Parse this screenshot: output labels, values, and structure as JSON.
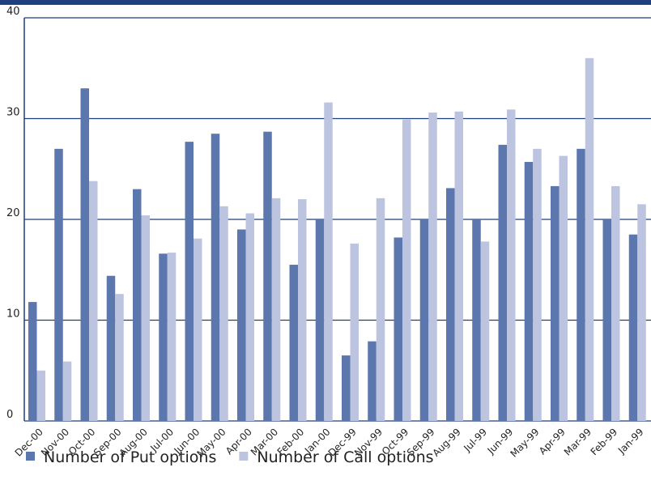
{
  "chart_data": {
    "type": "bar",
    "categories": [
      "Dec-00",
      "Nov-00",
      "Oct-00",
      "Sep-00",
      "Aug-00",
      "Jul-00",
      "Jun-00",
      "May-00",
      "Apr-00",
      "Mar-00",
      "Feb-00",
      "Jan-00",
      "Dec-99",
      "Nov-99",
      "Oct-99",
      "Sep-99",
      "Aug-99",
      "Jul-99",
      "Jun-99",
      "May-99",
      "Apr-99",
      "Mar-99",
      "Feb-99",
      "Jan-99"
    ],
    "series": [
      {
        "name": "Number of Put options",
        "color": "#5b77ad",
        "values": [
          11.8,
          27.0,
          33.0,
          14.4,
          23.0,
          16.6,
          27.7,
          28.5,
          19.0,
          28.7,
          15.5,
          20.0,
          6.5,
          7.9,
          18.2,
          20.0,
          23.1,
          20.0,
          27.4,
          25.7,
          23.3,
          27.0,
          20.0,
          18.5
        ]
      },
      {
        "name": "Number of Call options",
        "color": "#bcc4e0",
        "values": [
          5.0,
          5.9,
          23.8,
          12.6,
          20.4,
          16.7,
          18.1,
          21.3,
          20.6,
          22.1,
          22.0,
          31.6,
          17.6,
          22.1,
          29.9,
          30.6,
          30.7,
          17.8,
          30.9,
          27.0,
          26.3,
          36.0,
          23.3,
          21.5
        ]
      }
    ],
    "ylim": [
      0,
      40
    ],
    "yticks": [
      0,
      10,
      20,
      30,
      40
    ],
    "grid": true
  }
}
